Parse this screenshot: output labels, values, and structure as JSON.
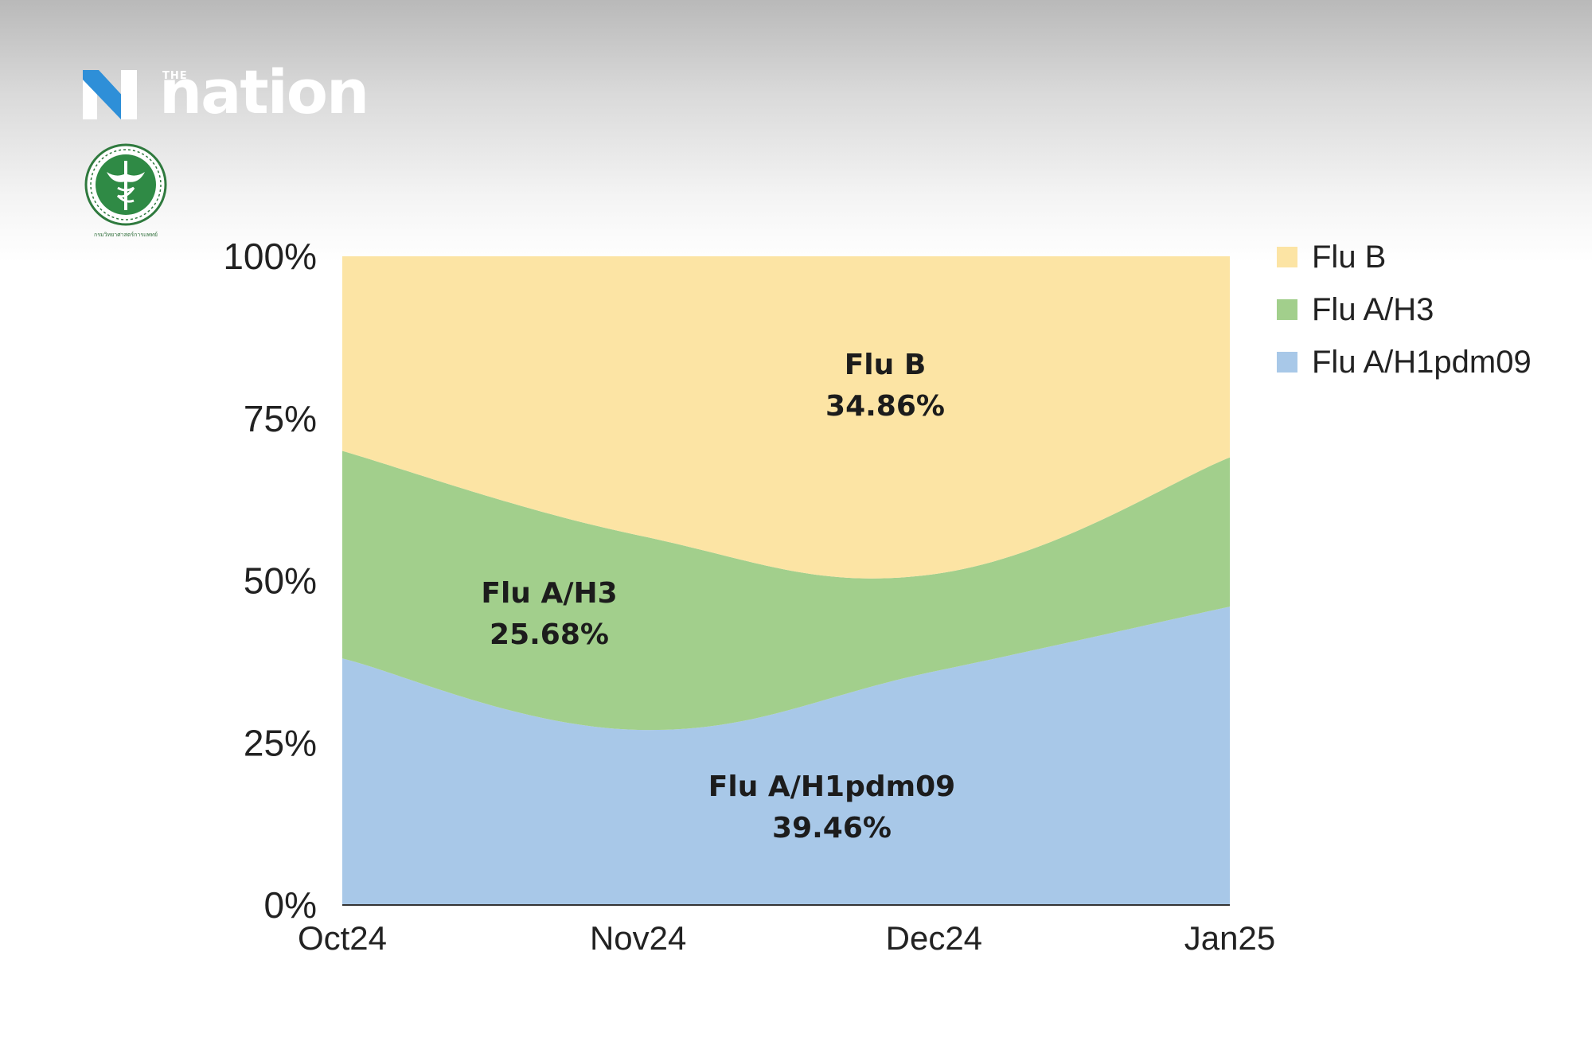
{
  "brand": {
    "prefix": "THE",
    "word": "nation"
  },
  "seal": {
    "caption": "กรมวิทยาศาสตร์การแพทย์"
  },
  "chart_data": {
    "type": "area",
    "stacked": true,
    "x": [
      "Oct24",
      "Nov24",
      "Dec24",
      "Jan25"
    ],
    "ylim": [
      0,
      100
    ],
    "yticks": [
      "0%",
      "25%",
      "50%",
      "75%",
      "100%"
    ],
    "legend_position": "right",
    "grid": false,
    "series": [
      {
        "name": "Flu A/H1pdm09",
        "color": "#a8c8e8",
        "values": [
          38,
          27,
          36,
          46
        ],
        "label": "Flu A/H1pdm09",
        "share": "39.46%"
      },
      {
        "name": "Flu A/H3",
        "color": "#a2cf8c",
        "values": [
          32,
          30,
          15,
          23
        ],
        "label": "Flu A/H3",
        "share": "25.68%"
      },
      {
        "name": "Flu B",
        "color": "#fce4a4",
        "values": [
          30,
          43,
          49,
          31
        ],
        "label": "Flu B",
        "share": "34.86%"
      }
    ]
  }
}
